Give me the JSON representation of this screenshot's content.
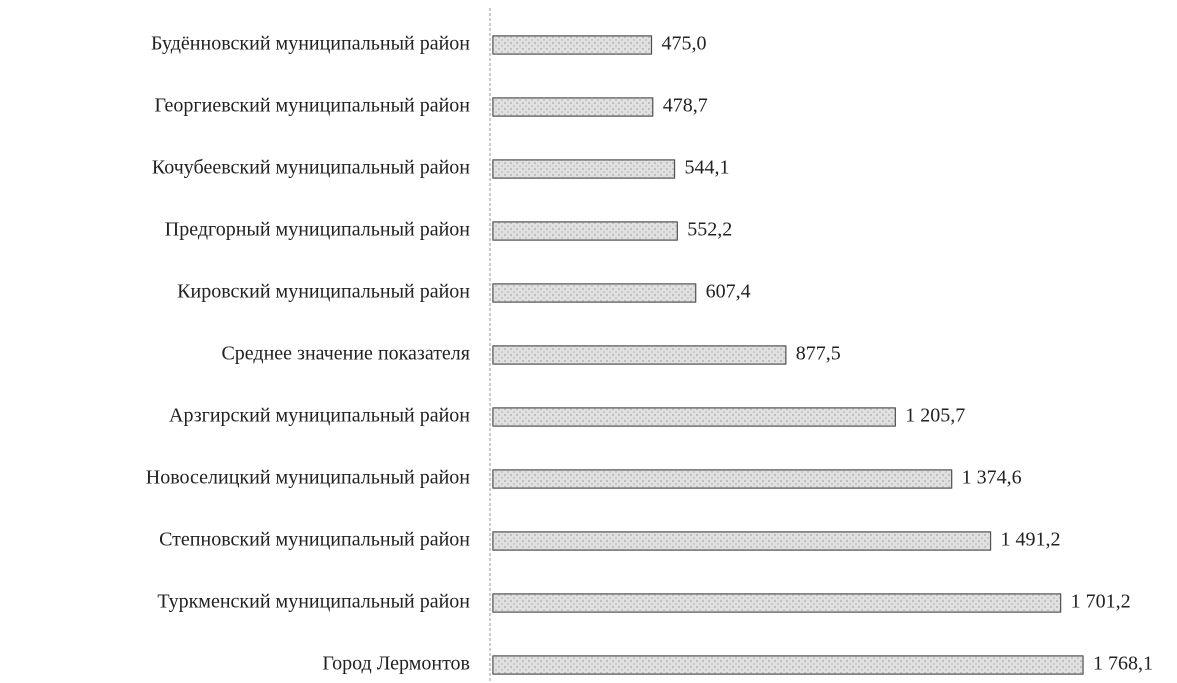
{
  "chart_data": {
    "type": "barh",
    "categories": [
      "Будённовский муниципальный район",
      "Георгиевский муниципальный район",
      "Кочубеевский муниципальный район",
      "Предгорный муниципальный район",
      "Кировский муниципальный район",
      "Среднее значение показателя",
      "Арзгирский муниципальный район",
      "Новоселицкий муниципальный район",
      "Степновский муниципальный район",
      "Туркменский муниципальный район",
      "Город Лермонтов"
    ],
    "values": [
      475.0,
      478.7,
      544.1,
      552.2,
      607.4,
      877.5,
      1205.7,
      1374.6,
      1491.2,
      1701.2,
      1768.1
    ],
    "value_labels": [
      "475,0",
      "478,7",
      "544,1",
      "552,2",
      "607,4",
      "877,5",
      "1 205,7",
      "1 374,6",
      "1 491,2",
      "1 701,2",
      "1 768,1"
    ],
    "color": "#d4d4d4",
    "edge_color": "#333333",
    "xlim": [
      0,
      2050
    ]
  }
}
